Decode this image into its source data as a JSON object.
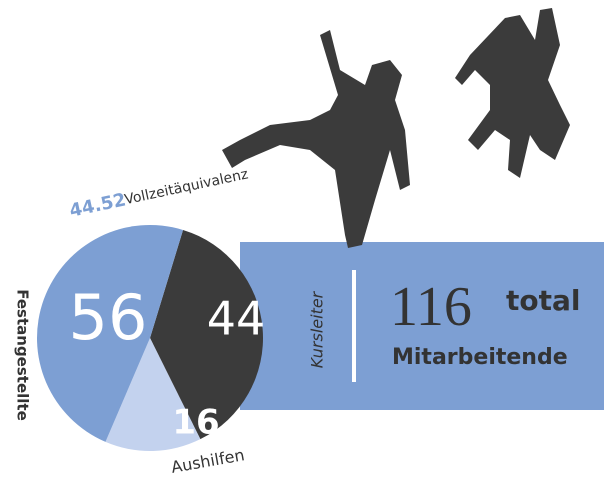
{
  "chart_data": {
    "type": "pie",
    "categories": [
      "Festangestellte",
      "Kursleiter",
      "Aushilfen"
    ],
    "values": [
      56,
      44,
      16
    ],
    "colors": [
      "#7d9fd3",
      "#3b3b3b",
      "#c3d2ee"
    ],
    "fte_value": 44.52,
    "fte_label": "Vollzeitäquivalenz",
    "total": 116,
    "total_label": "total",
    "total_caption": "Mitarbeitende"
  }
}
